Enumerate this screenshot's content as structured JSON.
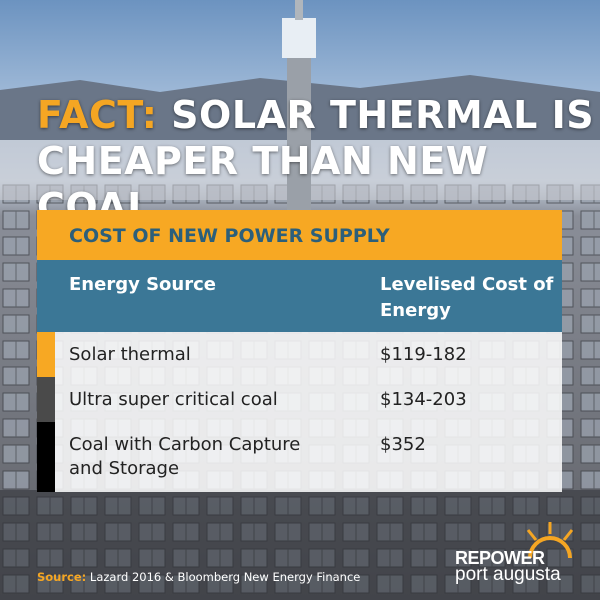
{
  "header": {
    "lead": "FACT:",
    "lines": [
      "SOLAR THERMAL IS",
      "CHEAPER THAN NEW COAL"
    ]
  },
  "table": {
    "title": "COST OF NEW POWER SUPPLY",
    "columns": [
      "Energy Source",
      "Levelised Cost of Energy"
    ],
    "rows": [
      [
        "Solar thermal",
        "$119-182"
      ],
      [
        "Ultra super critical coal",
        "$134-203"
      ],
      [
        "Coal with Carbon Capture and Storage",
        "$352"
      ]
    ]
  },
  "footer": {
    "source_label": "Source:",
    "source_text": "Lazard 2016 & Bloomberg New Energy Finance"
  },
  "logo": {
    "top": "REPOWER",
    "bottom": "port augusta"
  }
}
